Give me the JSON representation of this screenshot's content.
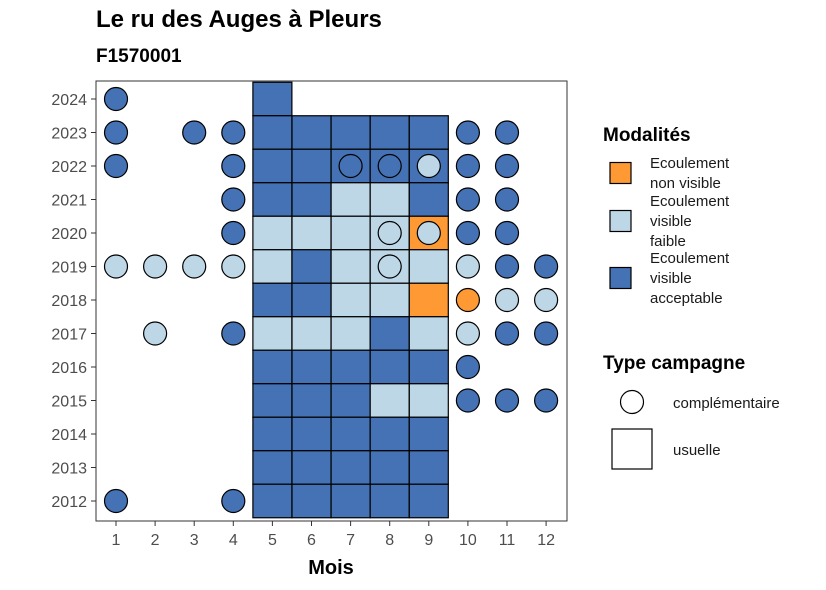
{
  "title": "Le ru des Auges à Pleurs",
  "subtitle": "F1570001",
  "colors": {
    "orange": "#FF9933",
    "light_blue": "#BDD7E7",
    "dark_blue": "#4472B4",
    "border": "#000000",
    "panel_border": "#333333",
    "axis_text": "#4d4d4d"
  },
  "chart_data": {
    "type": "heatmap",
    "xlabel": "Mois",
    "ylabel": "",
    "x_ticks": [
      1,
      2,
      3,
      4,
      5,
      6,
      7,
      8,
      9,
      10,
      11,
      12
    ],
    "y_ticks": [
      2012,
      2013,
      2014,
      2015,
      2016,
      2017,
      2018,
      2019,
      2020,
      2021,
      2022,
      2023,
      2024
    ],
    "grid": false,
    "legends": {
      "modalites": {
        "title": "Modalités",
        "items": [
          {
            "key": "non_visible",
            "lines": [
              "Ecoulement",
              "non visible"
            ],
            "color": "#FF9933"
          },
          {
            "key": "faible",
            "lines": [
              "Ecoulement",
              "visible",
              "faible"
            ],
            "color": "#BDD7E7"
          },
          {
            "key": "acceptable",
            "lines": [
              "Ecoulement",
              "visible",
              "acceptable"
            ],
            "color": "#4472B4"
          }
        ]
      },
      "type_campagne": {
        "title": "Type campagne",
        "items": [
          {
            "key": "complementaire",
            "label": "complémentaire",
            "shape": "circle"
          },
          {
            "key": "usuelle",
            "label": "usuelle",
            "shape": "square"
          }
        ]
      }
    },
    "usuelle": [
      {
        "month": 5,
        "year": 2024,
        "value": "acceptable"
      },
      {
        "month": 5,
        "year": 2023,
        "value": "acceptable"
      },
      {
        "month": 6,
        "year": 2023,
        "value": "acceptable"
      },
      {
        "month": 7,
        "year": 2023,
        "value": "acceptable"
      },
      {
        "month": 8,
        "year": 2023,
        "value": "acceptable"
      },
      {
        "month": 9,
        "year": 2023,
        "value": "acceptable"
      },
      {
        "month": 5,
        "year": 2022,
        "value": "acceptable"
      },
      {
        "month": 6,
        "year": 2022,
        "value": "acceptable"
      },
      {
        "month": 7,
        "year": 2022,
        "value": "acceptable"
      },
      {
        "month": 8,
        "year": 2022,
        "value": "acceptable"
      },
      {
        "month": 9,
        "year": 2022,
        "value": "acceptable"
      },
      {
        "month": 5,
        "year": 2021,
        "value": "acceptable"
      },
      {
        "month": 6,
        "year": 2021,
        "value": "acceptable"
      },
      {
        "month": 7,
        "year": 2021,
        "value": "faible"
      },
      {
        "month": 8,
        "year": 2021,
        "value": "faible"
      },
      {
        "month": 9,
        "year": 2021,
        "value": "acceptable"
      },
      {
        "month": 5,
        "year": 2020,
        "value": "faible"
      },
      {
        "month": 6,
        "year": 2020,
        "value": "faible"
      },
      {
        "month": 7,
        "year": 2020,
        "value": "faible"
      },
      {
        "month": 8,
        "year": 2020,
        "value": "faible"
      },
      {
        "month": 9,
        "year": 2020,
        "value": "non_visible"
      },
      {
        "month": 5,
        "year": 2019,
        "value": "faible"
      },
      {
        "month": 6,
        "year": 2019,
        "value": "acceptable"
      },
      {
        "month": 7,
        "year": 2019,
        "value": "faible"
      },
      {
        "month": 8,
        "year": 2019,
        "value": "faible"
      },
      {
        "month": 9,
        "year": 2019,
        "value": "faible"
      },
      {
        "month": 5,
        "year": 2018,
        "value": "acceptable"
      },
      {
        "month": 6,
        "year": 2018,
        "value": "acceptable"
      },
      {
        "month": 7,
        "year": 2018,
        "value": "faible"
      },
      {
        "month": 8,
        "year": 2018,
        "value": "faible"
      },
      {
        "month": 9,
        "year": 2018,
        "value": "non_visible"
      },
      {
        "month": 5,
        "year": 2017,
        "value": "faible"
      },
      {
        "month": 6,
        "year": 2017,
        "value": "faible"
      },
      {
        "month": 7,
        "year": 2017,
        "value": "faible"
      },
      {
        "month": 8,
        "year": 2017,
        "value": "acceptable"
      },
      {
        "month": 9,
        "year": 2017,
        "value": "faible"
      },
      {
        "month": 5,
        "year": 2016,
        "value": "acceptable"
      },
      {
        "month": 6,
        "year": 2016,
        "value": "acceptable"
      },
      {
        "month": 7,
        "year": 2016,
        "value": "acceptable"
      },
      {
        "month": 8,
        "year": 2016,
        "value": "acceptable"
      },
      {
        "month": 9,
        "year": 2016,
        "value": "acceptable"
      },
      {
        "month": 5,
        "year": 2015,
        "value": "acceptable"
      },
      {
        "month": 6,
        "year": 2015,
        "value": "acceptable"
      },
      {
        "month": 7,
        "year": 2015,
        "value": "acceptable"
      },
      {
        "month": 8,
        "year": 2015,
        "value": "faible"
      },
      {
        "month": 9,
        "year": 2015,
        "value": "faible"
      },
      {
        "month": 5,
        "year": 2014,
        "value": "acceptable"
      },
      {
        "month": 6,
        "year": 2014,
        "value": "acceptable"
      },
      {
        "month": 7,
        "year": 2014,
        "value": "acceptable"
      },
      {
        "month": 8,
        "year": 2014,
        "value": "acceptable"
      },
      {
        "month": 9,
        "year": 2014,
        "value": "acceptable"
      },
      {
        "month": 5,
        "year": 2013,
        "value": "acceptable"
      },
      {
        "month": 6,
        "year": 2013,
        "value": "acceptable"
      },
      {
        "month": 7,
        "year": 2013,
        "value": "acceptable"
      },
      {
        "month": 8,
        "year": 2013,
        "value": "acceptable"
      },
      {
        "month": 9,
        "year": 2013,
        "value": "acceptable"
      },
      {
        "month": 5,
        "year": 2012,
        "value": "acceptable"
      },
      {
        "month": 6,
        "year": 2012,
        "value": "acceptable"
      },
      {
        "month": 7,
        "year": 2012,
        "value": "acceptable"
      },
      {
        "month": 8,
        "year": 2012,
        "value": "acceptable"
      },
      {
        "month": 9,
        "year": 2012,
        "value": "acceptable"
      }
    ],
    "complementaire": [
      {
        "month": 1,
        "year": 2024,
        "value": "acceptable"
      },
      {
        "month": 1,
        "year": 2023,
        "value": "acceptable"
      },
      {
        "month": 3,
        "year": 2023,
        "value": "acceptable"
      },
      {
        "month": 4,
        "year": 2023,
        "value": "acceptable"
      },
      {
        "month": 10,
        "year": 2023,
        "value": "acceptable"
      },
      {
        "month": 11,
        "year": 2023,
        "value": "acceptable"
      },
      {
        "month": 1,
        "year": 2022,
        "value": "acceptable"
      },
      {
        "month": 4,
        "year": 2022,
        "value": "acceptable"
      },
      {
        "month": 7,
        "year": 2022,
        "value": "acceptable"
      },
      {
        "month": 8,
        "year": 2022,
        "value": "acceptable"
      },
      {
        "month": 9,
        "year": 2022,
        "value": "faible"
      },
      {
        "month": 10,
        "year": 2022,
        "value": "acceptable"
      },
      {
        "month": 11,
        "year": 2022,
        "value": "acceptable"
      },
      {
        "month": 4,
        "year": 2021,
        "value": "acceptable"
      },
      {
        "month": 10,
        "year": 2021,
        "value": "acceptable"
      },
      {
        "month": 11,
        "year": 2021,
        "value": "acceptable"
      },
      {
        "month": 4,
        "year": 2020,
        "value": "acceptable"
      },
      {
        "month": 8,
        "year": 2020,
        "value": "faible"
      },
      {
        "month": 9,
        "year": 2020,
        "value": "faible"
      },
      {
        "month": 10,
        "year": 2020,
        "value": "acceptable"
      },
      {
        "month": 11,
        "year": 2020,
        "value": "acceptable"
      },
      {
        "month": 1,
        "year": 2019,
        "value": "faible"
      },
      {
        "month": 2,
        "year": 2019,
        "value": "faible"
      },
      {
        "month": 3,
        "year": 2019,
        "value": "faible"
      },
      {
        "month": 4,
        "year": 2019,
        "value": "faible"
      },
      {
        "month": 8,
        "year": 2019,
        "value": "faible"
      },
      {
        "month": 10,
        "year": 2019,
        "value": "faible"
      },
      {
        "month": 11,
        "year": 2019,
        "value": "acceptable"
      },
      {
        "month": 12,
        "year": 2019,
        "value": "acceptable"
      },
      {
        "month": 10,
        "year": 2018,
        "value": "non_visible"
      },
      {
        "month": 11,
        "year": 2018,
        "value": "faible"
      },
      {
        "month": 12,
        "year": 2018,
        "value": "faible"
      },
      {
        "month": 2,
        "year": 2017,
        "value": "faible"
      },
      {
        "month": 4,
        "year": 2017,
        "value": "acceptable"
      },
      {
        "month": 10,
        "year": 2017,
        "value": "faible"
      },
      {
        "month": 11,
        "year": 2017,
        "value": "acceptable"
      },
      {
        "month": 12,
        "year": 2017,
        "value": "acceptable"
      },
      {
        "month": 10,
        "year": 2016,
        "value": "acceptable"
      },
      {
        "month": 10,
        "year": 2015,
        "value": "acceptable"
      },
      {
        "month": 11,
        "year": 2015,
        "value": "acceptable"
      },
      {
        "month": 12,
        "year": 2015,
        "value": "acceptable"
      },
      {
        "month": 1,
        "year": 2012,
        "value": "acceptable"
      },
      {
        "month": 4,
        "year": 2012,
        "value": "acceptable"
      }
    ]
  }
}
